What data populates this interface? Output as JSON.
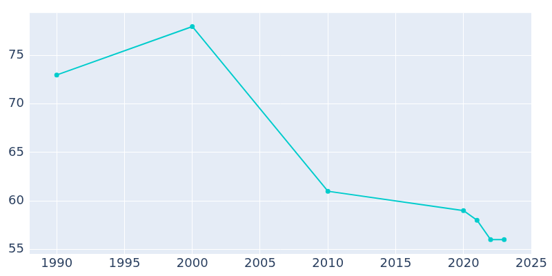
{
  "chart_data": {
    "type": "line",
    "x": [
      1990,
      2000,
      2010,
      2020,
      2021,
      2022,
      2023
    ],
    "values": [
      73,
      78,
      61,
      59,
      58,
      56,
      56
    ],
    "color": "#00cccc",
    "marker": "circle",
    "xlim": [
      1988,
      2025
    ],
    "xticks": [
      1990,
      1995,
      2000,
      2005,
      2010,
      2015,
      2020,
      2025
    ],
    "ylim": [
      54.5,
      79.4
    ],
    "yticks": [
      55,
      60,
      65,
      70,
      75
    ],
    "grid": true
  }
}
